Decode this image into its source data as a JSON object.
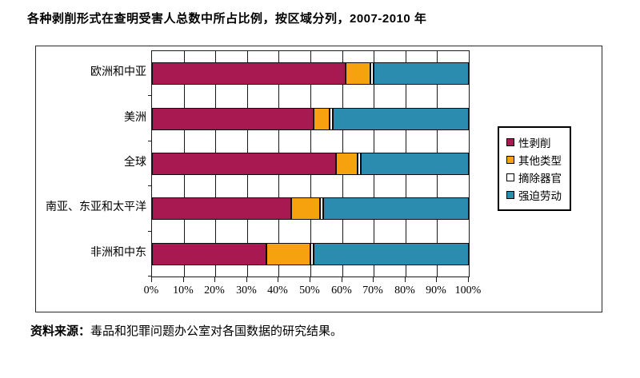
{
  "title": "各种剥削形式在查明受害人总数中所占比例，按区域分列，2007-2010 年",
  "source": {
    "label": "资料来源：",
    "text": "毒品和犯罪问题办公室对各国数据的研究结果。"
  },
  "chart_data": {
    "type": "bar",
    "orientation": "horizontal",
    "stacked": true,
    "title": "各种剥削形式在查明受害人总数中所占比例，按区域分列，2007-2010 年",
    "categories": [
      "欧洲和中亚",
      "美洲",
      "全球",
      "南亚、东亚和太平洋",
      "非洲和中东"
    ],
    "series": [
      {
        "name": "性剥削",
        "color": "#A81952",
        "values": [
          61,
          51,
          58,
          44,
          36
        ]
      },
      {
        "name": "其他类型",
        "color": "#F5A20E",
        "values": [
          8,
          5,
          7,
          9,
          14
        ]
      },
      {
        "name": "摘除器官",
        "color": "#FFFFFF",
        "values": [
          1,
          1,
          1,
          1,
          1
        ]
      },
      {
        "name": "强迫劳动",
        "color": "#2B8CB0",
        "values": [
          30,
          43,
          34,
          46,
          49
        ]
      }
    ],
    "x_ticks": [
      "0%",
      "10%",
      "20%",
      "30%",
      "40%",
      "50%",
      "60%",
      "70%",
      "80%",
      "90%",
      "100%"
    ],
    "xlim": [
      0,
      100
    ],
    "unit": "%",
    "grid": "vertical",
    "legend_position": "right"
  }
}
